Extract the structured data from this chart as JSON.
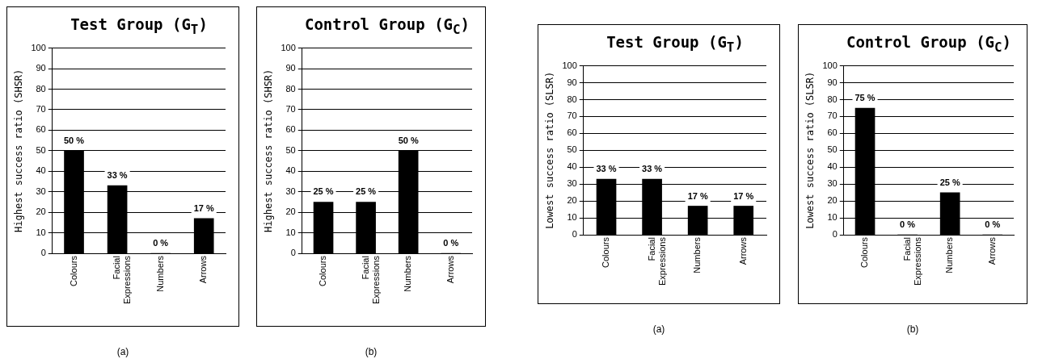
{
  "chart_data": [
    {
      "type": "bar",
      "title": "Test Group (G$_{T}$)",
      "ylabel": "Highest success ratio (SHSR)",
      "categories": [
        "Colours",
        "Facial Expressions",
        "Numbers",
        "Arrows"
      ],
      "values": [
        50,
        33,
        0,
        17
      ],
      "value_labels": [
        "50 %",
        "33 %",
        "0 %",
        "17 %"
      ],
      "color": "#000000",
      "ylim": [
        0,
        100
      ],
      "yticks": [
        0,
        10,
        20,
        30,
        40,
        50,
        60,
        70,
        80,
        90,
        100
      ],
      "grid": "y",
      "legend": false,
      "annotations": [
        "(a)"
      ]
    },
    {
      "type": "bar",
      "title": "Control Group (G$_{C}$)",
      "ylabel": "Highest success ratio (SHSR)",
      "categories": [
        "Colours",
        "Facial Expressions",
        "Numbers",
        "Arrows"
      ],
      "values": [
        25,
        25,
        50,
        0
      ],
      "value_labels": [
        "25 %",
        "25 %",
        "50 %",
        "0 %"
      ],
      "color": "#000000",
      "ylim": [
        0,
        100
      ],
      "yticks": [
        0,
        10,
        20,
        30,
        40,
        50,
        60,
        70,
        80,
        90,
        100
      ],
      "grid": "y",
      "legend": false,
      "annotations": [
        "(b)"
      ]
    },
    {
      "type": "bar",
      "title": "Test Group (G$_{T}$)",
      "ylabel": "Lowest success ratio (SLSR)",
      "categories": [
        "Colours",
        "Facial Expressions",
        "Numbers",
        "Arrows"
      ],
      "values": [
        33,
        33,
        17,
        17
      ],
      "value_labels": [
        "33 %",
        "33 %",
        "17 %",
        "17 %"
      ],
      "color": "#000000",
      "ylim": [
        0,
        100
      ],
      "yticks": [
        0,
        10,
        20,
        30,
        40,
        50,
        60,
        70,
        80,
        90,
        100
      ],
      "grid": "y",
      "legend": false,
      "annotations": [
        "(a)"
      ]
    },
    {
      "type": "bar",
      "title": "Control Group (G$_{C}$)",
      "ylabel": "Lowest success ratio (SLSR)",
      "categories": [
        "Colours",
        "Facial Expressions",
        "Numbers",
        "Arrows"
      ],
      "values": [
        75,
        0,
        25,
        0
      ],
      "value_labels": [
        "75 %",
        "0 %",
        "25 %",
        "0 %"
      ],
      "color": "#000000",
      "ylim": [
        0,
        100
      ],
      "yticks": [
        0,
        10,
        20,
        30,
        40,
        50,
        60,
        70,
        80,
        90,
        100
      ],
      "grid": "y",
      "legend": false,
      "annotations": [
        "(b)"
      ]
    }
  ]
}
